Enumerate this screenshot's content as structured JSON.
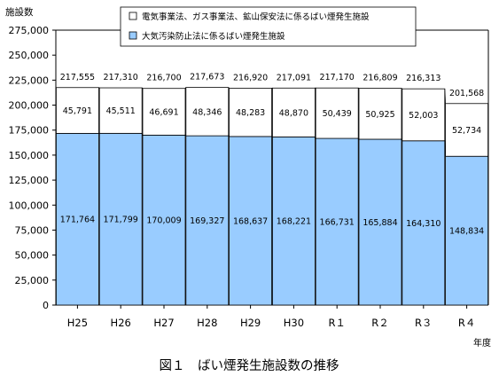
{
  "chart_data": {
    "type": "bar",
    "stacked": true,
    "ylabel": "施設数",
    "xunit": "年度",
    "caption": "図１　ばい煙発生施設数の推移",
    "ylim": [
      0,
      275000
    ],
    "yticks": [
      "0",
      "25,000",
      "50,000",
      "75,000",
      "100,000",
      "125,000",
      "150,000",
      "175,000",
      "200,000",
      "225,000",
      "250,000",
      "275,000"
    ],
    "grid": false,
    "legend_position": "top",
    "categories": [
      "H25",
      "H26",
      "H27",
      "H28",
      "H29",
      "H30",
      "R１",
      "R２",
      "R３",
      "R４"
    ],
    "series": [
      {
        "name": "大気汚染防止法に係るばい煙発生施設",
        "color": "#99ccff",
        "values": [
          171764,
          171799,
          170009,
          169327,
          168637,
          168221,
          166731,
          165884,
          164310,
          148834
        ],
        "labels": [
          "171,764",
          "171,799",
          "170,009",
          "169,327",
          "168,637",
          "168,221",
          "166,731",
          "165,884",
          "164,310",
          "148,834"
        ]
      },
      {
        "name": "電気事業法、ガス事業法、鉱山保安法に係るばい煙発生施設",
        "color": "#ffffff",
        "values": [
          45791,
          45511,
          46691,
          48346,
          48283,
          48870,
          50439,
          50925,
          52003,
          52734
        ],
        "labels": [
          "45,791",
          "45,511",
          "46,691",
          "48,346",
          "48,283",
          "48,870",
          "50,439",
          "50,925",
          "52,003",
          "52,734"
        ]
      }
    ],
    "totals": [
      217555,
      217310,
      216700,
      217673,
      216920,
      217091,
      217170,
      216809,
      216313,
      201568
    ],
    "total_labels": [
      "217,555",
      "217,310",
      "216,700",
      "217,673",
      "216,920",
      "217,091",
      "217,170",
      "216,809",
      "216,313",
      "201,568"
    ]
  }
}
